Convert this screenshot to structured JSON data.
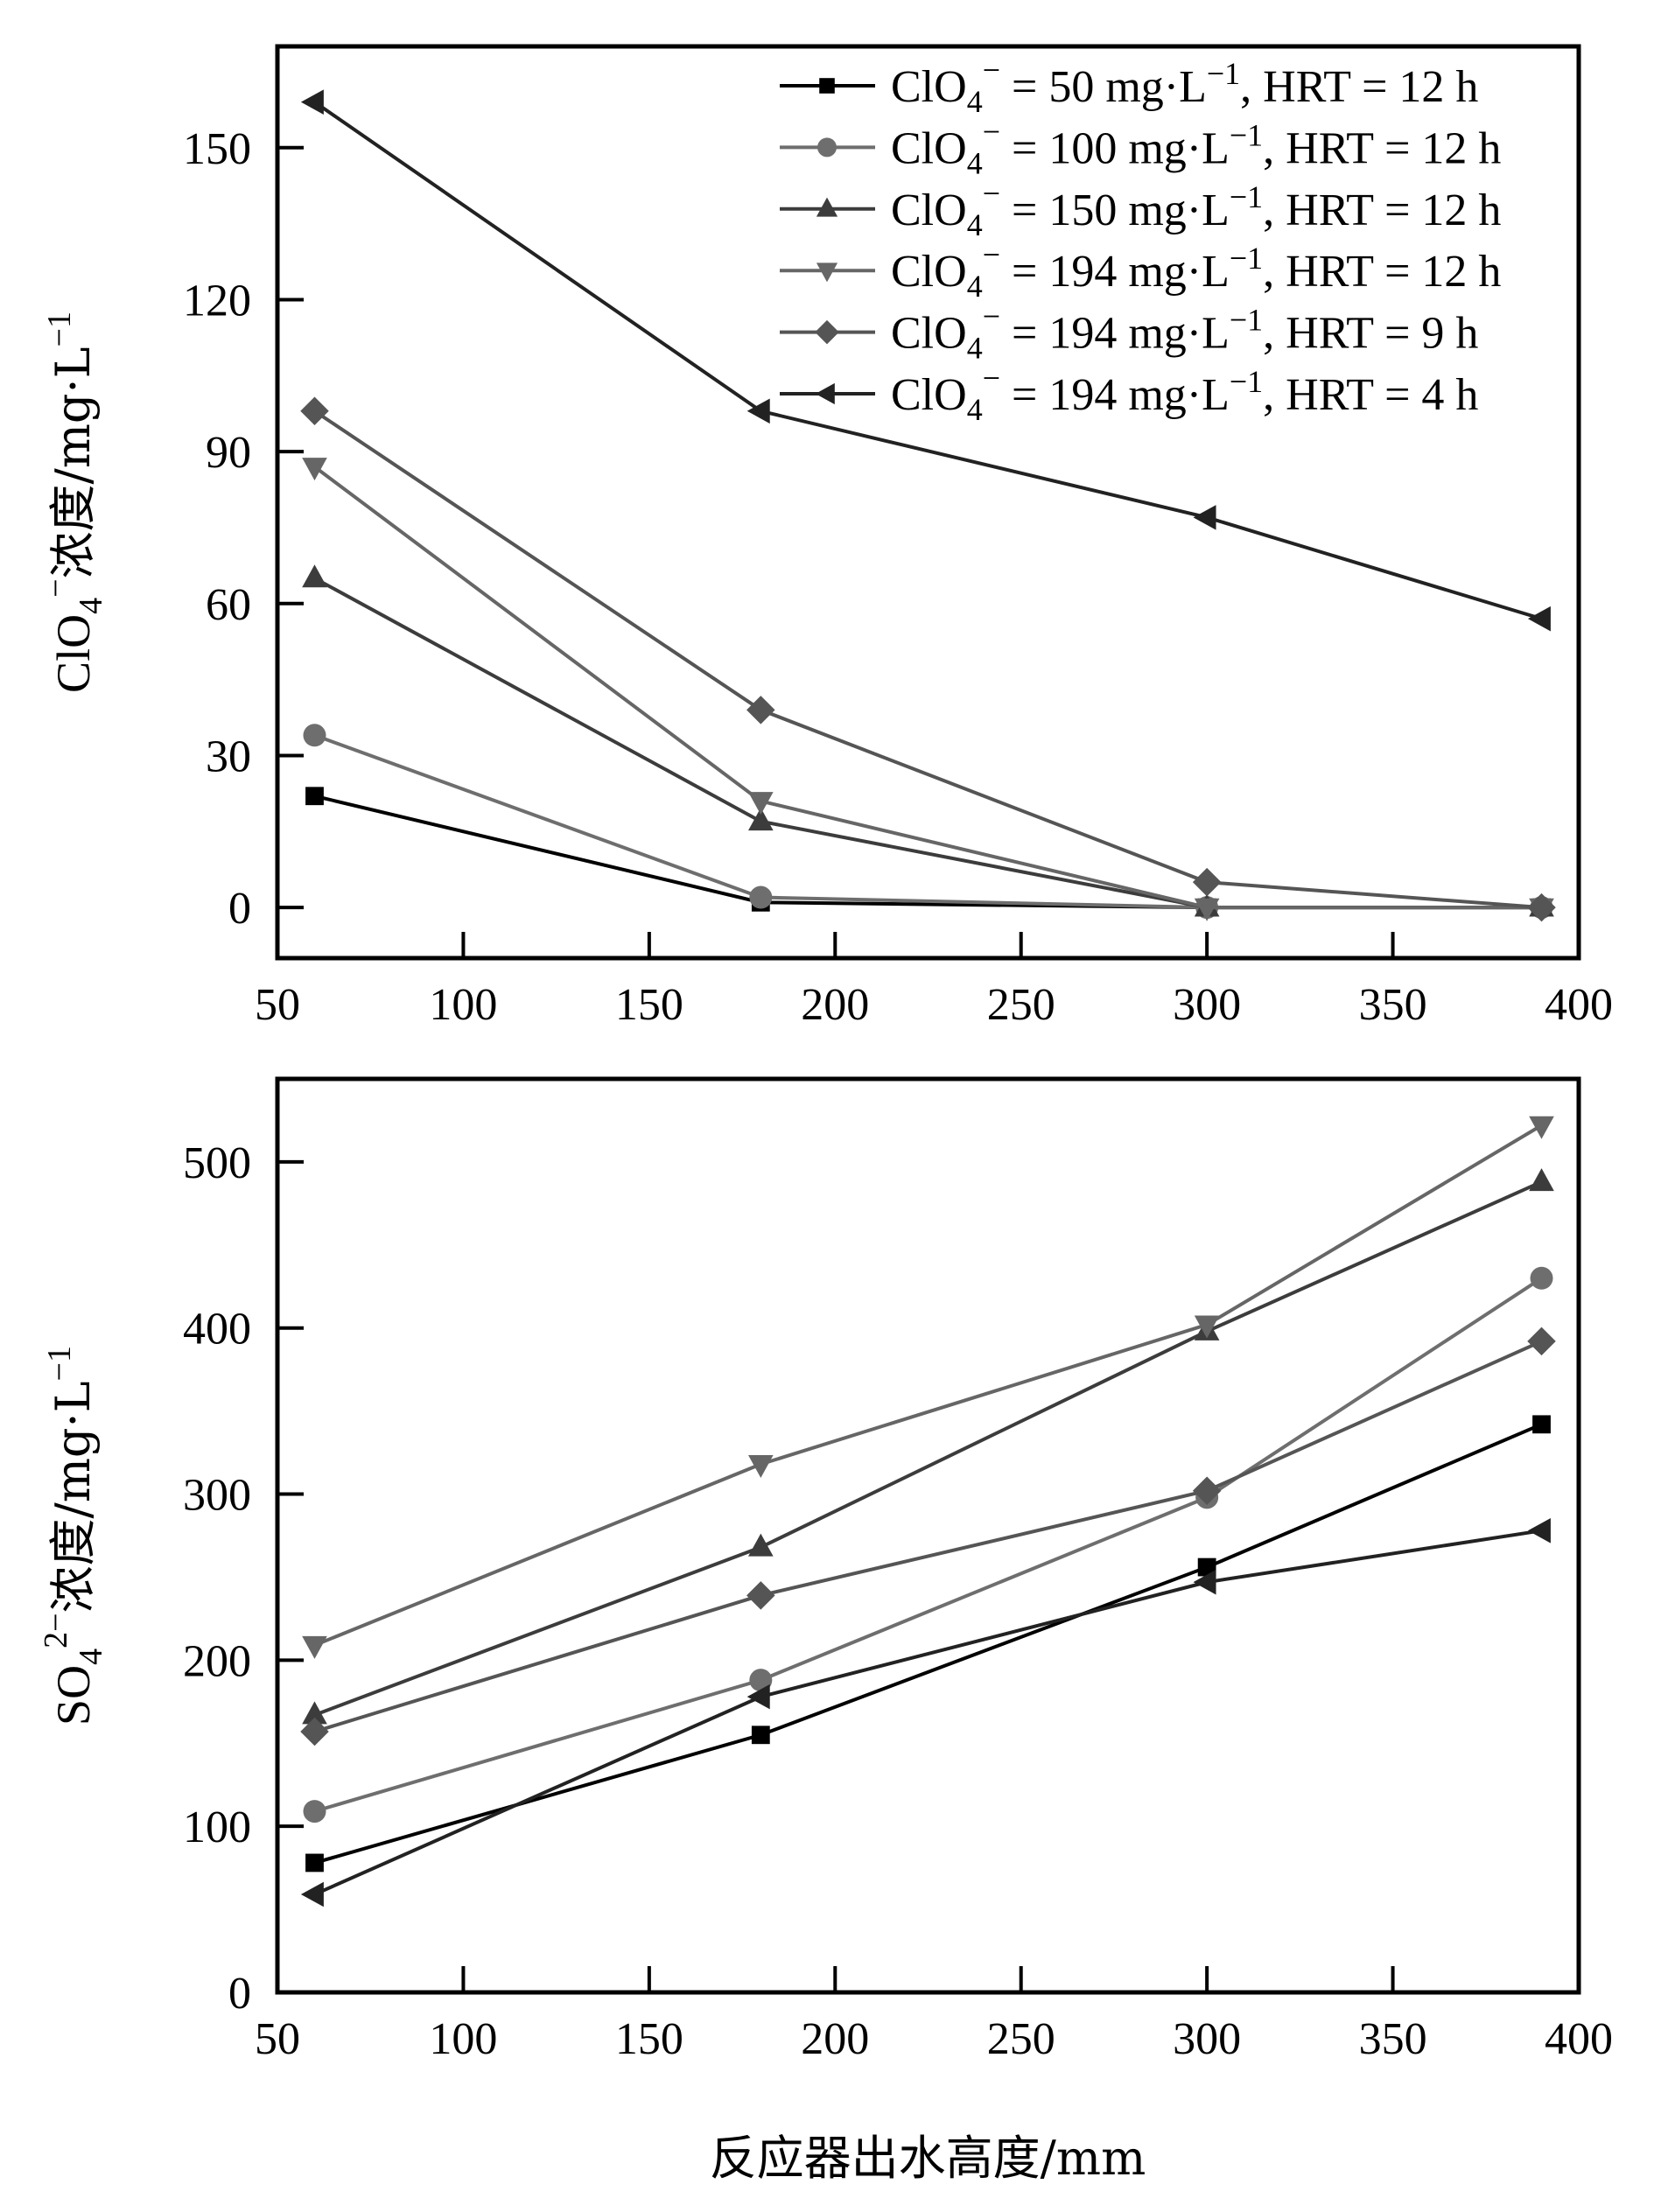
{
  "chart_data": [
    {
      "type": "line",
      "title": "",
      "xlabel": "",
      "ylabel": {
        "species": "ClO",
        "sub": "4",
        "sup": "−",
        "rest": "浓度/mg·L",
        "unit_sup": "−1"
      },
      "xlim": [
        50,
        400
      ],
      "ylim": [
        -10,
        170
      ],
      "xticks": [
        50,
        100,
        150,
        200,
        250,
        300,
        350,
        400
      ],
      "yticks": [
        0,
        30,
        60,
        90,
        120,
        150
      ],
      "grid": false,
      "legend_position": "top-right",
      "x": [
        60,
        180,
        300,
        390
      ],
      "series": [
        {
          "name": "ClO4− = 50 mg·L−1, HRT = 12 h",
          "legend": {
            "conc": "50",
            "hrt": "12 h"
          },
          "marker": "square",
          "color": "#000000",
          "values": [
            22,
            1,
            0,
            0
          ]
        },
        {
          "name": "ClO4− = 100 mg·L−1, HRT = 12 h",
          "legend": {
            "conc": "100",
            "hrt": "12 h"
          },
          "marker": "circle",
          "color": "#6e6e6e",
          "values": [
            34,
            2,
            0,
            0
          ]
        },
        {
          "name": "ClO4− = 150 mg·L−1, HRT = 12 h",
          "legend": {
            "conc": "150",
            "hrt": "12 h"
          },
          "marker": "triangle-up",
          "color": "#3c3c3c",
          "values": [
            65,
            17,
            0,
            0
          ]
        },
        {
          "name": "ClO4− = 194 mg·L−1, HRT = 12 h",
          "legend": {
            "conc": "194",
            "hrt": "12 h"
          },
          "marker": "triangle-down",
          "color": "#666666",
          "values": [
            87,
            21,
            0,
            0
          ]
        },
        {
          "name": "ClO4− = 194 mg·L−1, HRT = 9 h",
          "legend": {
            "conc": "194",
            "hrt": "9 h"
          },
          "marker": "diamond",
          "color": "#555555",
          "values": [
            98,
            39,
            5,
            0
          ]
        },
        {
          "name": "ClO4− = 194 mg·L−1, HRT = 4 h",
          "legend": {
            "conc": "194",
            "hrt": "4 h"
          },
          "marker": "triangle-left",
          "color": "#222222",
          "values": [
            159,
            98,
            77,
            57
          ]
        }
      ]
    },
    {
      "type": "line",
      "title": "",
      "xlabel": "反应器出水高度/mm",
      "ylabel": {
        "species": "SO",
        "sub": "4",
        "sup": "2−",
        "rest": "浓度/mg·L",
        "unit_sup": "−1"
      },
      "xlim": [
        50,
        400
      ],
      "ylim": [
        0,
        550
      ],
      "xticks": [
        50,
        100,
        150,
        200,
        250,
        300,
        350,
        400
      ],
      "yticks": [
        0,
        100,
        200,
        300,
        400,
        500
      ],
      "grid": false,
      "x": [
        60,
        180,
        300,
        390
      ],
      "series": [
        {
          "name": "ClO4− = 50 mg·L−1, HRT = 12 h",
          "marker": "square",
          "color": "#000000",
          "values": [
            78,
            155,
            256,
            342
          ]
        },
        {
          "name": "ClO4− = 100 mg·L−1, HRT = 12 h",
          "marker": "circle",
          "color": "#6e6e6e",
          "values": [
            109,
            188,
            298,
            430
          ]
        },
        {
          "name": "ClO4− = 150 mg·L−1, HRT = 12 h",
          "marker": "triangle-up",
          "color": "#3c3c3c",
          "values": [
            167,
            268,
            398,
            488
          ]
        },
        {
          "name": "ClO4− = 194 mg·L−1, HRT = 12 h",
          "marker": "triangle-down",
          "color": "#666666",
          "values": [
            209,
            318,
            402,
            522
          ]
        },
        {
          "name": "ClO4− = 194 mg·L−1, HRT = 9 h",
          "marker": "diamond",
          "color": "#555555",
          "values": [
            157,
            239,
            302,
            392
          ]
        },
        {
          "name": "ClO4− = 194 mg·L−1, HRT = 4 h",
          "marker": "triangle-left",
          "color": "#222222",
          "values": [
            59,
            178,
            247,
            278
          ]
        }
      ]
    }
  ],
  "legend_text": {
    "species": "ClO",
    "sub": "4",
    "sup": "−",
    "eq": " = ",
    "unit": " mg·L",
    "unit_sup": "−1",
    "hrt": ", HRT = "
  }
}
